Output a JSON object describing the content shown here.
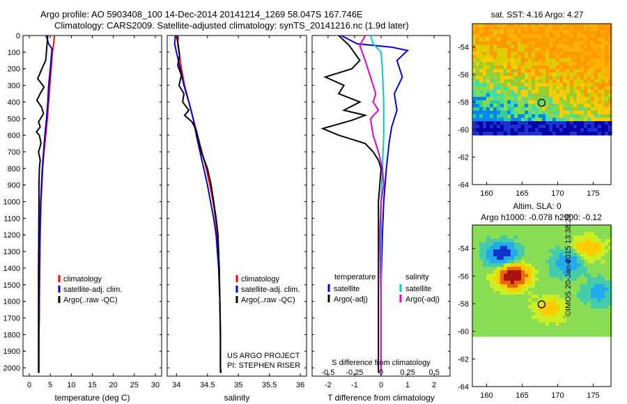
{
  "header": {
    "line1": "Argo profile: AO 5903408_100 14-Dec-2014 20141214_1269 58.047S 167.746E",
    "line2": "Climatology: CARS2009. Satellite-adjusted climatology: synTS_20141216.nc (1.9d later)"
  },
  "side_text": {
    "project1": "US ARGO PROJECT",
    "project2": "PI: STEPHEN RISER",
    "timestamp": "©IMOS 20-Jan-2015 13:38:29"
  },
  "chart_data": [
    {
      "type": "line",
      "id": "temperature",
      "xlabel": "temperature (deg C)",
      "ylabel": "",
      "xlim": [
        -1.5,
        31.5
      ],
      "ylim": [
        2050,
        0
      ],
      "xticks": [
        0,
        5,
        10,
        15,
        20,
        25,
        30
      ],
      "yticks": [
        0,
        100,
        200,
        300,
        400,
        500,
        600,
        700,
        800,
        900,
        1000,
        1100,
        1200,
        1300,
        1400,
        1500,
        1600,
        1700,
        1800,
        1900,
        2000
      ],
      "legend": [
        "climatology",
        "satellite-adj. clim.",
        "Argo(..raw -QC)"
      ],
      "series": [
        {
          "name": "climatology",
          "color": "#ff0000",
          "x": [
            6.0,
            5.8,
            5.5,
            5.2,
            4.9,
            4.6,
            4.3,
            3.9,
            3.5,
            3.2,
            3.0,
            2.8,
            2.7,
            2.6,
            2.5,
            2.4,
            2.4,
            2.3,
            2.3,
            2.3,
            2.3
          ],
          "y": [
            0,
            50,
            100,
            200,
            300,
            400,
            500,
            600,
            700,
            800,
            900,
            1000,
            1100,
            1200,
            1400,
            1600,
            1700,
            1800,
            1900,
            2000,
            2030
          ]
        },
        {
          "name": "satellite-adj. clim.",
          "color": "#0000dd",
          "x": [
            4.0,
            4.6,
            5.4,
            5.0,
            4.6,
            4.4,
            4.1,
            3.7,
            3.4,
            3.1,
            2.9,
            2.7,
            2.6,
            2.5,
            2.4,
            2.35,
            2.3,
            2.3,
            2.25,
            2.25,
            2.25
          ],
          "y": [
            0,
            50,
            80,
            200,
            300,
            400,
            500,
            600,
            700,
            800,
            900,
            1000,
            1100,
            1200,
            1400,
            1600,
            1700,
            1800,
            1900,
            2000,
            2030
          ]
        },
        {
          "name": "Argo(..raw -QC)",
          "color": "#000000",
          "x": [
            4.4,
            4.2,
            3.9,
            3.0,
            2.0,
            3.5,
            2.6,
            1.8,
            2.9,
            3.4,
            2.2,
            2.6,
            1.7,
            2.4,
            2.8,
            2.2,
            2.6,
            2.4,
            2.3,
            2.3,
            2.2,
            2.2,
            2.2
          ],
          "y": [
            0,
            60,
            150,
            200,
            260,
            310,
            350,
            390,
            430,
            470,
            520,
            550,
            580,
            600,
            650,
            700,
            750,
            800,
            900,
            1000,
            1400,
            2000,
            2030
          ]
        }
      ]
    },
    {
      "type": "line",
      "id": "salinity",
      "xlabel": "salinity",
      "ylabel": "",
      "xlim": [
        33.85,
        36.1
      ],
      "ylim": [
        2050,
        0
      ],
      "xticks": [
        34,
        34.5,
        35,
        35.5,
        36
      ],
      "legend": [
        "climatology",
        "satellite-adj. clim.",
        "Argo(..raw -QC)"
      ],
      "series": [
        {
          "name": "climatology",
          "color": "#ff0000",
          "x": [
            34.03,
            34.02,
            34.04,
            34.08,
            34.13,
            34.2,
            34.27,
            34.34,
            34.41,
            34.48,
            34.54,
            34.59,
            34.63,
            34.66,
            34.69,
            34.7,
            34.71,
            34.71,
            34.72
          ],
          "y": [
            0,
            50,
            100,
            200,
            300,
            400,
            500,
            600,
            700,
            800,
            900,
            1000,
            1100,
            1200,
            1400,
            1600,
            1800,
            2000,
            2030
          ]
        },
        {
          "name": "satellite-adj. clim.",
          "color": "#0000dd",
          "x": [
            33.98,
            33.97,
            34.0,
            34.06,
            34.12,
            34.2,
            34.27,
            34.32,
            34.38,
            34.44,
            34.5,
            34.55,
            34.6,
            34.64,
            34.68,
            34.7,
            34.71,
            34.71,
            34.72
          ],
          "y": [
            0,
            50,
            100,
            200,
            300,
            400,
            500,
            600,
            700,
            800,
            900,
            1000,
            1100,
            1200,
            1400,
            1600,
            1800,
            2000,
            2030
          ]
        },
        {
          "name": "Argo(..raw -QC)",
          "color": "#000000",
          "x": [
            34.0,
            34.03,
            34.05,
            34.02,
            34.08,
            34.04,
            34.12,
            34.1,
            34.2,
            34.13,
            34.25,
            34.32,
            34.36,
            34.4,
            34.45,
            34.5,
            34.56,
            34.6,
            34.64,
            34.67,
            34.69,
            34.7,
            34.71,
            34.71
          ],
          "y": [
            0,
            60,
            120,
            180,
            240,
            300,
            350,
            400,
            450,
            480,
            520,
            570,
            640,
            700,
            750,
            800,
            900,
            1000,
            1100,
            1200,
            1400,
            1600,
            1800,
            2030
          ]
        }
      ]
    },
    {
      "type": "line",
      "id": "difference",
      "xlabel": "T difference from climatology",
      "xlabel_top": "S difference from climatology",
      "ylabel": "",
      "xlim": [
        -2.6,
        2.6
      ],
      "ylim": [
        2050,
        0
      ],
      "xticks": [
        -2,
        -1,
        0,
        1,
        2
      ],
      "s_ticks": [
        "-0.5",
        "-0.25",
        "0",
        "0.25",
        "0.5"
      ],
      "legend_headers": [
        "temperature",
        "salinity"
      ],
      "legend": [
        "satellite",
        "Argo(-adj)",
        "satellite",
        "Argo(-adj)"
      ],
      "series": [
        {
          "name": "temperature satellite",
          "color": "#0000dd",
          "x": [
            -1.5,
            -0.9,
            0.4,
            1.0,
            0.6,
            0.8,
            0.5,
            0.6,
            0.4,
            0.3,
            0.2,
            0.1,
            0.05,
            0.0,
            0.0
          ],
          "y": [
            0,
            50,
            70,
            90,
            150,
            250,
            350,
            450,
            550,
            650,
            800,
            1000,
            1200,
            1500,
            2030
          ]
        },
        {
          "name": "temperature Argo(-adj)",
          "color": "#000000",
          "x": [
            -1.6,
            -1.2,
            -0.8,
            -1.1,
            -2.1,
            -1.4,
            -1.6,
            -0.8,
            -1.4,
            -0.6,
            -1.1,
            -2.2,
            -1.6,
            -0.6,
            -0.3,
            -0.1,
            0.0,
            -0.05,
            -0.1,
            -0.1,
            -0.1
          ],
          "y": [
            0,
            60,
            150,
            200,
            250,
            300,
            350,
            400,
            450,
            480,
            510,
            560,
            600,
            650,
            700,
            750,
            800,
            900,
            1000,
            1400,
            2030
          ]
        },
        {
          "name": "salinity satellite",
          "color": "#00cccc",
          "x": [
            -0.4,
            -0.3,
            0.0,
            0.05,
            0.1,
            0.1,
            0.05,
            0.0,
            0.0,
            0.0,
            0.0
          ],
          "y": [
            0,
            50,
            100,
            200,
            400,
            600,
            800,
            1000,
            1400,
            1800,
            2030
          ]
        },
        {
          "name": "salinity Argo(-adj)",
          "color": "#dd00dd",
          "x": [
            -0.6,
            -0.8,
            -0.6,
            -0.4,
            -0.2,
            -0.3,
            -0.1,
            -0.4,
            -0.3,
            -0.1,
            0.05,
            0.1,
            0.0,
            -0.05,
            0.0,
            0.0
          ],
          "y": [
            0,
            60,
            150,
            250,
            350,
            400,
            450,
            500,
            600,
            700,
            800,
            900,
            1000,
            1200,
            1600,
            2030
          ]
        }
      ]
    },
    {
      "type": "heatmap",
      "id": "sst_map",
      "title": "sat. SST: 4.16 Argo: 4.27",
      "xlim": [
        158,
        177.5
      ],
      "ylim": [
        -64,
        -52.3
      ],
      "xticks": [
        160,
        165,
        170,
        175
      ],
      "yticks": [
        -54,
        -56,
        -58,
        -60,
        -62,
        -64
      ],
      "data_extent_lat": [
        -60.2,
        -52.3
      ],
      "marker": {
        "lon": 167.746,
        "lat": -58.047
      }
    },
    {
      "type": "heatmap",
      "id": "sla_map",
      "title": "Altim. SLA: 0",
      "subtitle": "Argo h1000: -0.078 h2000: -0.12",
      "xlim": [
        158,
        177.5
      ],
      "ylim": [
        -64,
        -52.3
      ],
      "xticks": [
        160,
        165,
        170,
        175
      ],
      "yticks": [
        -54,
        -56,
        -58,
        -60,
        -62,
        -64
      ],
      "data_extent_lat": [
        -60.2,
        -52.3
      ],
      "marker": {
        "lon": 167.746,
        "lat": -58.047
      }
    }
  ]
}
